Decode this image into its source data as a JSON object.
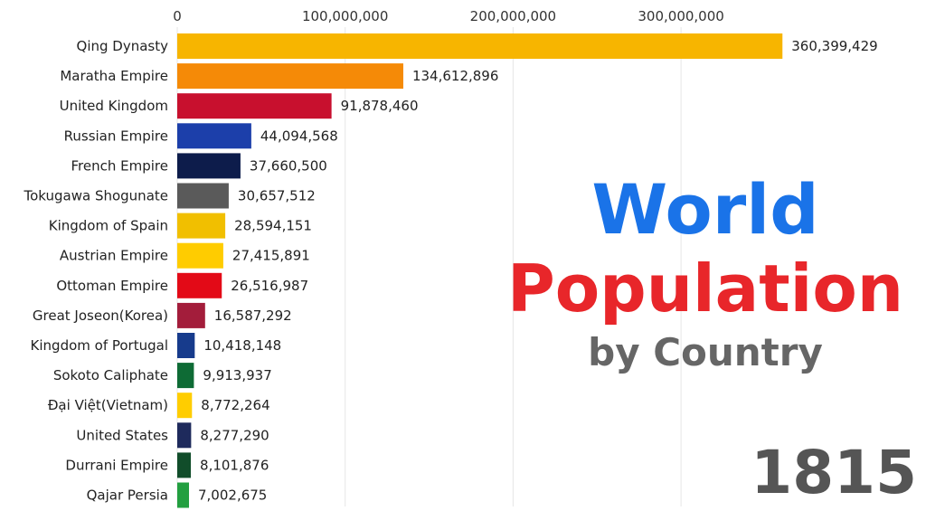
{
  "title": {
    "line1": "World",
    "line2": "Population",
    "line3": "by Country"
  },
  "year": "1815",
  "colors": {
    "title_blue": "#1a73e8",
    "title_red": "#e8262a",
    "subtitle_gray": "#666666"
  },
  "chart_data": {
    "type": "bar",
    "orientation": "horizontal",
    "xlim": [
      0,
      380000000
    ],
    "ticks": [
      0,
      100000000,
      200000000,
      300000000
    ],
    "tick_labels": [
      "0",
      "100,000,000",
      "200,000,000",
      "300,000,000"
    ],
    "grid": true,
    "categories": [
      "Qing Dynasty",
      "Maratha Empire",
      "United Kingdom",
      "Russian Empire",
      "French Empire",
      "Tokugawa Shogunate",
      "Kingdom of Spain",
      "Austrian Empire",
      "Ottoman Empire",
      "Great Joseon(Korea)",
      "Kingdom of Portugal",
      "Sokoto Caliphate",
      "Đại Việt(Vietnam)",
      "United States",
      "Durrani Empire",
      "Qajar Persia"
    ],
    "values": [
      360399429,
      134612896,
      91878460,
      44094568,
      37660500,
      30657512,
      28594151,
      27415891,
      26516987,
      16587292,
      10418148,
      9913937,
      8772264,
      8277290,
      8101876,
      7002675
    ],
    "value_labels": [
      "360,399,429",
      "134,612,896",
      "91,878,460",
      "44,094,568",
      "37,660,500",
      "30,657,512",
      "28,594,151",
      "27,415,891",
      "26,516,987",
      "16,587,292",
      "10,418,148",
      "9,913,937",
      "8,772,264",
      "8,277,290",
      "8,101,876",
      "7,002,675"
    ],
    "bar_colors": [
      "#f7b500",
      "#f58a07",
      "#c8102e",
      "#1c3faa",
      "#0d1c4b",
      "#5a5a5a",
      "#f1bf00",
      "#ffcc00",
      "#e30a17",
      "#a31d3b",
      "#173b8c",
      "#0e6b35",
      "#ffcd00",
      "#1e2a5c",
      "#114d2a",
      "#239f40"
    ]
  }
}
